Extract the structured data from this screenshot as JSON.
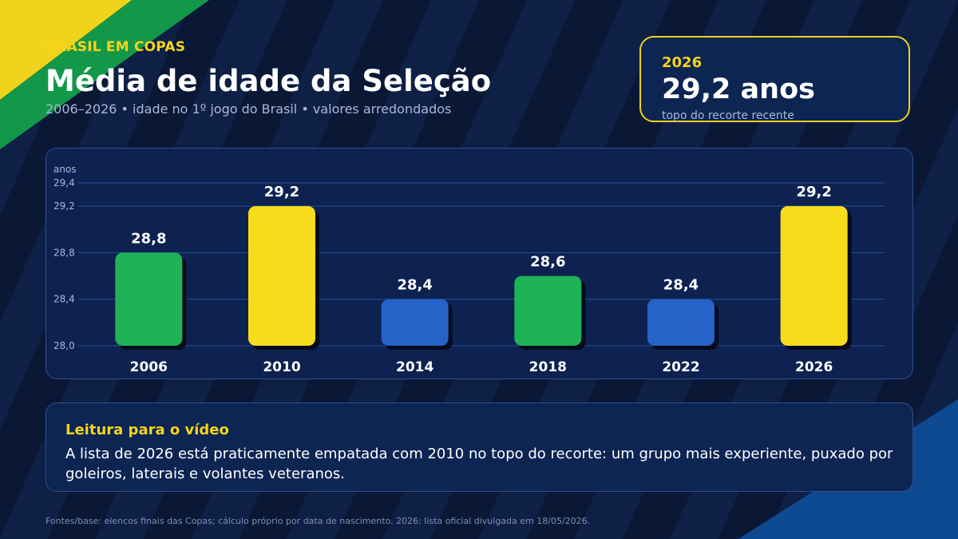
{
  "header": {
    "eyebrow": "BRASIL EM COPAS",
    "title": "Média de idade da Seleção",
    "subtitle": "2006–2026 • idade no 1º jogo do Brasil • valores arredondados"
  },
  "highlight": {
    "year": "2026",
    "value": "29,2 anos",
    "caption": "topo do recorte recente"
  },
  "chart_data": {
    "type": "bar",
    "title": "Média de idade da Seleção",
    "ylabel": "anos",
    "categories": [
      "2006",
      "2010",
      "2014",
      "2018",
      "2022",
      "2026"
    ],
    "values": [
      28.8,
      29.2,
      28.4,
      28.6,
      28.4,
      29.2
    ],
    "value_labels": [
      "28,8",
      "29,2",
      "28,4",
      "28,6",
      "28,4",
      "29,2"
    ],
    "bar_colors": [
      "#1fb257",
      "#f6dc1a",
      "#2563c9",
      "#1fb257",
      "#2563c9",
      "#f6dc1a"
    ],
    "ylim": [
      28.0,
      29.4
    ],
    "yticks": [
      28.0,
      28.4,
      28.8,
      29.2,
      29.4
    ],
    "ytick_labels": [
      "28,0",
      "28,4",
      "28,8",
      "29,2",
      "29,4"
    ],
    "grid": true,
    "legend": "none"
  },
  "reading": {
    "title": "Leitura para o vídeo",
    "body": "A lista de 2026 está praticamente empatada com 2010 no topo do recorte: um grupo mais experiente, puxado por goleiros, laterais e volantes veteranos."
  },
  "footer": {
    "source": "Fontes/base: elencos finais das Copas; cálculo próprio por data de nascimento. 2026: lista oficial divulgada em 18/05/2026."
  },
  "colors": {
    "background": "#0b1a3a",
    "accent_yellow": "#f7d417",
    "green": "#1fb257",
    "blue": "#2563c9"
  }
}
